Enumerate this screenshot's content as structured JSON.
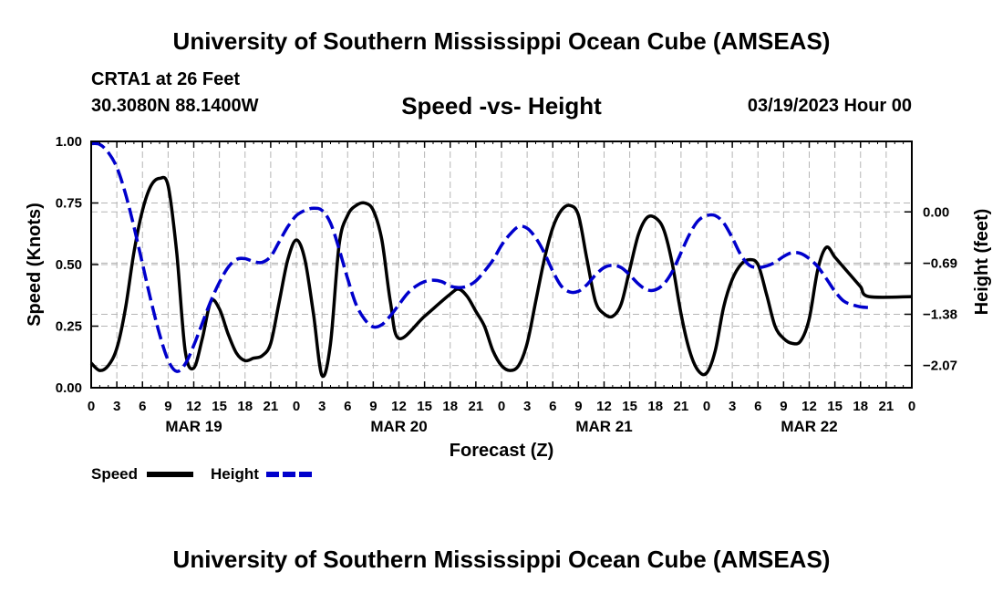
{
  "header": {
    "title": "University of Southern Mississippi Ocean Cube (AMSEAS)",
    "station": "CRTA1 at 26 Feet",
    "coords": "30.3080N  88.1400W",
    "subtitle": "Speed -vs- Height",
    "date": "03/19/2023 Hour 00"
  },
  "footer": {
    "title": "University of Southern Mississippi Ocean Cube (AMSEAS)"
  },
  "chart_data": {
    "type": "line",
    "title": "Speed -vs- Height",
    "xlabel": "Forecast (Z)",
    "ylabel": "Speed (Knots)",
    "y2label": "Height (feet)",
    "x_range_hours": [
      0,
      96
    ],
    "ylim": [
      0,
      1
    ],
    "y2lim": [
      -2.37,
      0.95
    ],
    "grid": true,
    "y_ticks": [
      0,
      0.25,
      0.5,
      0.75,
      1.0
    ],
    "y_tick_labels": [
      "0.00",
      "0.25",
      "0.50",
      "0.75",
      "1.00"
    ],
    "y2_ticks": [
      0.0,
      -0.69,
      -1.38,
      -2.07
    ],
    "y2_tick_labels": [
      "0.00",
      "−0.69",
      "−1.38",
      "−2.07"
    ],
    "x_tick_labels": [
      "0",
      "3",
      "6",
      "9",
      "12",
      "15",
      "18",
      "21",
      "0",
      "3",
      "6",
      "9",
      "12",
      "15",
      "18",
      "21",
      "0",
      "3",
      "6",
      "9",
      "12",
      "15",
      "18",
      "21",
      "0",
      "3",
      "6",
      "9",
      "12",
      "15",
      "18",
      "21",
      "0"
    ],
    "day_labels": [
      {
        "hour": 12,
        "label": "MAR 19"
      },
      {
        "hour": 36,
        "label": "MAR 20"
      },
      {
        "hour": 60,
        "label": "MAR 21"
      },
      {
        "hour": 84,
        "label": "MAR 22"
      }
    ],
    "legend": [
      {
        "name": "Speed",
        "color": "#000000",
        "dash": "solid"
      },
      {
        "name": "Height",
        "color": "#0000cc",
        "dash": "dashed"
      }
    ],
    "series": [
      {
        "name": "Speed",
        "axis": "left",
        "color": "#000000",
        "points": [
          [
            0,
            0.1
          ],
          [
            1,
            0.07
          ],
          [
            2,
            0.09
          ],
          [
            3,
            0.16
          ],
          [
            4,
            0.32
          ],
          [
            5,
            0.55
          ],
          [
            6,
            0.72
          ],
          [
            7,
            0.82
          ],
          [
            8,
            0.85
          ],
          [
            9,
            0.82
          ],
          [
            10,
            0.55
          ],
          [
            11,
            0.15
          ],
          [
            12,
            0.08
          ],
          [
            13,
            0.2
          ],
          [
            14,
            0.35
          ],
          [
            15,
            0.32
          ],
          [
            16,
            0.22
          ],
          [
            17,
            0.14
          ],
          [
            18,
            0.11
          ],
          [
            19,
            0.12
          ],
          [
            20,
            0.13
          ],
          [
            21,
            0.18
          ],
          [
            22,
            0.35
          ],
          [
            23,
            0.52
          ],
          [
            24,
            0.6
          ],
          [
            25,
            0.52
          ],
          [
            26,
            0.3
          ],
          [
            27,
            0.05
          ],
          [
            28,
            0.18
          ],
          [
            29,
            0.58
          ],
          [
            30,
            0.7
          ],
          [
            31,
            0.74
          ],
          [
            32,
            0.75
          ],
          [
            33,
            0.72
          ],
          [
            34,
            0.6
          ],
          [
            35,
            0.35
          ],
          [
            36,
            0.2
          ],
          [
            39,
            0.29
          ],
          [
            42,
            0.38
          ],
          [
            43,
            0.4
          ],
          [
            44,
            0.37
          ],
          [
            45,
            0.31
          ],
          [
            46,
            0.25
          ],
          [
            47,
            0.15
          ],
          [
            48,
            0.09
          ],
          [
            49,
            0.07
          ],
          [
            50,
            0.09
          ],
          [
            51,
            0.18
          ],
          [
            52,
            0.35
          ],
          [
            53,
            0.52
          ],
          [
            54,
            0.65
          ],
          [
            55,
            0.72
          ],
          [
            56,
            0.74
          ],
          [
            57,
            0.7
          ],
          [
            58,
            0.52
          ],
          [
            59,
            0.35
          ],
          [
            60,
            0.3
          ],
          [
            61,
            0.29
          ],
          [
            62,
            0.34
          ],
          [
            63,
            0.48
          ],
          [
            64,
            0.62
          ],
          [
            65,
            0.69
          ],
          [
            66,
            0.69
          ],
          [
            67,
            0.64
          ],
          [
            68,
            0.5
          ],
          [
            69,
            0.3
          ],
          [
            70,
            0.15
          ],
          [
            71,
            0.07
          ],
          [
            72,
            0.06
          ],
          [
            73,
            0.15
          ],
          [
            74,
            0.33
          ],
          [
            75,
            0.44
          ],
          [
            76,
            0.5
          ],
          [
            77,
            0.52
          ],
          [
            78,
            0.5
          ],
          [
            79,
            0.38
          ],
          [
            80,
            0.25
          ],
          [
            81,
            0.2
          ],
          [
            82,
            0.18
          ],
          [
            83,
            0.19
          ],
          [
            84,
            0.28
          ],
          [
            85,
            0.48
          ],
          [
            86,
            0.57
          ],
          [
            87,
            0.53
          ],
          [
            88,
            0.49
          ],
          [
            89,
            0.45
          ],
          [
            90,
            0.41
          ],
          [
            91,
            0.37
          ],
          [
            96,
            0.37
          ]
        ]
      },
      {
        "name": "Height",
        "axis": "right",
        "color": "#0000cc",
        "points": [
          [
            0,
            0.92
          ],
          [
            1,
            0.91
          ],
          [
            2,
            0.8
          ],
          [
            3,
            0.6
          ],
          [
            4,
            0.25
          ],
          [
            5,
            -0.2
          ],
          [
            6,
            -0.7
          ],
          [
            7,
            -1.2
          ],
          [
            8,
            -1.65
          ],
          [
            9,
            -2.0
          ],
          [
            10,
            -2.15
          ],
          [
            11,
            -2.05
          ],
          [
            12,
            -1.8
          ],
          [
            13,
            -1.5
          ],
          [
            14,
            -1.2
          ],
          [
            15,
            -0.95
          ],
          [
            16,
            -0.75
          ],
          [
            17,
            -0.64
          ],
          [
            18,
            -0.63
          ],
          [
            19,
            -0.67
          ],
          [
            20,
            -0.68
          ],
          [
            21,
            -0.6
          ],
          [
            22,
            -0.4
          ],
          [
            23,
            -0.2
          ],
          [
            24,
            -0.05
          ],
          [
            25,
            0.02
          ],
          [
            26,
            0.05
          ],
          [
            27,
            0.02
          ],
          [
            28,
            -0.15
          ],
          [
            29,
            -0.5
          ],
          [
            30,
            -0.9
          ],
          [
            31,
            -1.25
          ],
          [
            32,
            -1.45
          ],
          [
            33,
            -1.55
          ],
          [
            34,
            -1.52
          ],
          [
            35,
            -1.4
          ],
          [
            36,
            -1.25
          ],
          [
            37,
            -1.1
          ],
          [
            38,
            -1.0
          ],
          [
            39,
            -0.94
          ],
          [
            40,
            -0.92
          ],
          [
            41,
            -0.94
          ],
          [
            42,
            -1.0
          ],
          [
            43,
            -1.02
          ],
          [
            44,
            -1.0
          ],
          [
            45,
            -0.93
          ],
          [
            46,
            -0.8
          ],
          [
            47,
            -0.65
          ],
          [
            48,
            -0.45
          ],
          [
            49,
            -0.3
          ],
          [
            50,
            -0.2
          ],
          [
            51,
            -0.22
          ],
          [
            52,
            -0.35
          ],
          [
            53,
            -0.55
          ],
          [
            54,
            -0.8
          ],
          [
            55,
            -1.0
          ],
          [
            56,
            -1.08
          ],
          [
            57,
            -1.07
          ],
          [
            58,
            -0.98
          ],
          [
            59,
            -0.85
          ],
          [
            60,
            -0.75
          ],
          [
            61,
            -0.72
          ],
          [
            62,
            -0.75
          ],
          [
            63,
            -0.85
          ],
          [
            64,
            -0.97
          ],
          [
            65,
            -1.05
          ],
          [
            66,
            -1.05
          ],
          [
            67,
            -0.97
          ],
          [
            68,
            -0.8
          ],
          [
            69,
            -0.55
          ],
          [
            70,
            -0.3
          ],
          [
            71,
            -0.12
          ],
          [
            72,
            -0.05
          ],
          [
            73,
            -0.05
          ],
          [
            74,
            -0.15
          ],
          [
            75,
            -0.35
          ],
          [
            76,
            -0.58
          ],
          [
            77,
            -0.72
          ],
          [
            78,
            -0.75
          ],
          [
            79,
            -0.73
          ],
          [
            80,
            -0.68
          ],
          [
            81,
            -0.6
          ],
          [
            82,
            -0.55
          ],
          [
            83,
            -0.56
          ],
          [
            84,
            -0.63
          ],
          [
            85,
            -0.74
          ],
          [
            86,
            -0.9
          ],
          [
            87,
            -1.07
          ],
          [
            88,
            -1.2
          ],
          [
            89,
            -1.25
          ],
          [
            90,
            -1.28
          ],
          [
            91,
            -1.29
          ]
        ]
      }
    ]
  }
}
